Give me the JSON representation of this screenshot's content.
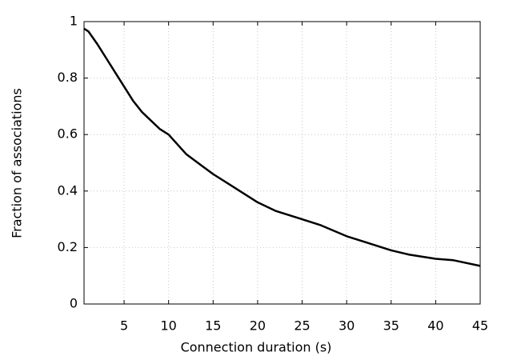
{
  "chart_data": {
    "type": "line",
    "x_label": "Connection duration (s)",
    "y_label": "Fraction of associations",
    "x": [
      0.5,
      1,
      2,
      3,
      4,
      5,
      6,
      7,
      8,
      9,
      10,
      12,
      15,
      17,
      20,
      22,
      25,
      27,
      30,
      32,
      35,
      37,
      40,
      42,
      45
    ],
    "values": [
      0.975,
      0.965,
      0.92,
      0.87,
      0.82,
      0.77,
      0.72,
      0.68,
      0.65,
      0.62,
      0.6,
      0.53,
      0.46,
      0.42,
      0.36,
      0.33,
      0.3,
      0.28,
      0.24,
      0.22,
      0.19,
      0.175,
      0.16,
      0.155,
      0.135
    ],
    "color": "#000000",
    "xlim": [
      0.5,
      45
    ],
    "xticks": [
      5,
      10,
      15,
      20,
      25,
      30,
      35,
      40,
      45
    ],
    "ylim": [
      0,
      1
    ],
    "yticks": [
      0,
      0.2,
      0.4,
      0.6,
      0.8,
      1
    ],
    "grid": true
  }
}
